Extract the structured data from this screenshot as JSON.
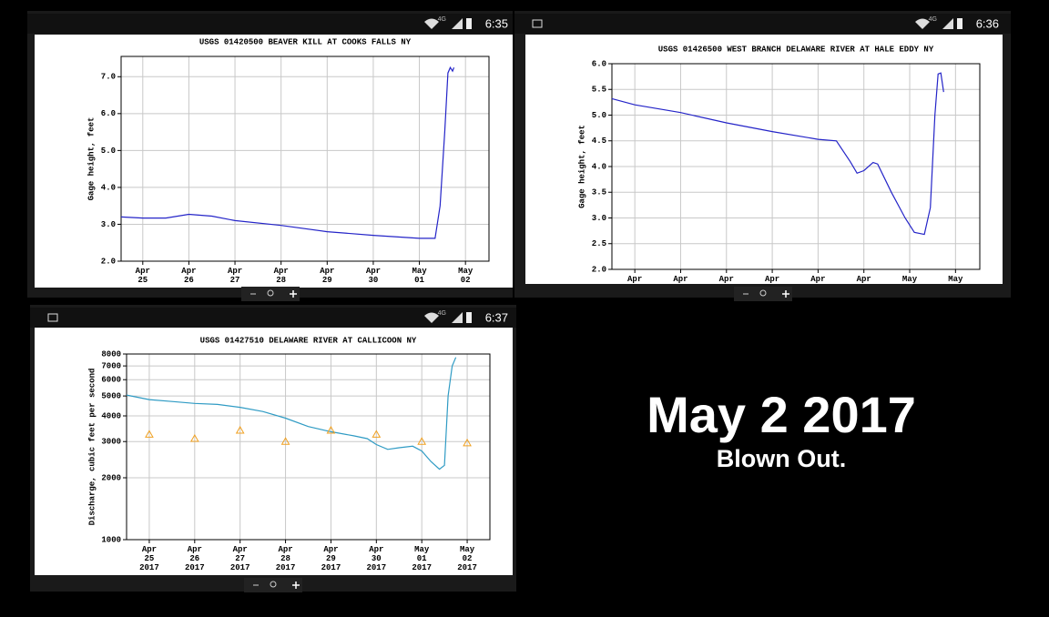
{
  "chart_data": [
    {
      "type": "line",
      "title": "USGS 01420500 BEAVER KILL AT COOKS FALLS NY",
      "y_label": "Gage height, feet",
      "xlim": [
        -0.47,
        7.51
      ],
      "xticks": [
        {
          "value": 0,
          "label": "Apr\n25"
        },
        {
          "value": 1,
          "label": "Apr\n26"
        },
        {
          "value": 2,
          "label": "Apr\n27"
        },
        {
          "value": 3,
          "label": "Apr\n28"
        },
        {
          "value": 4,
          "label": "Apr\n29"
        },
        {
          "value": 5,
          "label": "Apr\n30"
        },
        {
          "value": 6,
          "label": "May\n01"
        },
        {
          "value": 7,
          "label": "May\n02"
        }
      ],
      "ylim": [
        2,
        7.55
      ],
      "yticks": [
        {
          "value": 2,
          "label": "2.0"
        },
        {
          "value": 3,
          "label": "3.0"
        },
        {
          "value": 4,
          "label": "4.0"
        },
        {
          "value": 5,
          "label": "5.0"
        },
        {
          "value": 6,
          "label": "6.0"
        },
        {
          "value": 7,
          "label": "7.0"
        }
      ],
      "grid": true,
      "series": [
        {
          "color": "#2424c8",
          "x": [
            -0.47,
            0,
            0.5,
            1,
            1.5,
            2,
            3,
            4,
            5,
            6,
            6.34,
            6.45,
            6.55,
            6.62,
            6.67,
            6.72,
            6.75
          ],
          "values": [
            3.2,
            3.17,
            3.17,
            3.27,
            3.22,
            3.1,
            2.97,
            2.8,
            2.7,
            2.62,
            2.62,
            3.5,
            5.5,
            7.1,
            7.25,
            7.15,
            7.25
          ]
        }
      ]
    },
    {
      "type": "line",
      "title": "USGS 01426500 WEST BRANCH DELAWARE RIVER AT HALE EDDY NY",
      "y_label": "Gage height, feet",
      "xlim": [
        -0.5,
        7.53
      ],
      "xticks": [
        {
          "value": 0,
          "label": "Apr"
        },
        {
          "value": 1,
          "label": "Apr"
        },
        {
          "value": 2,
          "label": "Apr"
        },
        {
          "value": 3,
          "label": "Apr"
        },
        {
          "value": 4,
          "label": "Apr"
        },
        {
          "value": 5,
          "label": "Apr"
        },
        {
          "value": 6,
          "label": "May"
        },
        {
          "value": 7,
          "label": "May"
        }
      ],
      "ylim": [
        2,
        6
      ],
      "yticks": [
        {
          "value": 2,
          "label": "2.0"
        },
        {
          "value": 2.5,
          "label": "2.5"
        },
        {
          "value": 3,
          "label": "3.0"
        },
        {
          "value": 3.5,
          "label": "3.5"
        },
        {
          "value": 4,
          "label": "4.0"
        },
        {
          "value": 4.5,
          "label": "4.5"
        },
        {
          "value": 5,
          "label": "5.0"
        },
        {
          "value": 5.5,
          "label": "5.5"
        },
        {
          "value": 6,
          "label": "6.0"
        }
      ],
      "grid": true,
      "series": [
        {
          "color": "#2424c8",
          "x": [
            -0.5,
            0,
            1,
            2,
            3,
            4,
            4.4,
            4.7,
            4.85,
            5.0,
            5.2,
            5.3,
            5.6,
            5.9,
            6.1,
            6.32,
            6.45,
            6.55,
            6.62,
            6.68,
            6.74
          ],
          "values": [
            5.32,
            5.2,
            5.05,
            4.85,
            4.68,
            4.53,
            4.5,
            4.1,
            3.87,
            3.92,
            4.08,
            4.05,
            3.5,
            3.0,
            2.72,
            2.68,
            3.2,
            5.0,
            5.8,
            5.82,
            5.45
          ]
        }
      ]
    },
    {
      "type": "line",
      "title": "USGS 01427510 DELAWARE RIVER AT CALLICOON NY",
      "y_label": "Discharge, cubic feet per second",
      "log_scale": true,
      "xlim": [
        -0.5,
        7.5
      ],
      "xticks": [
        {
          "value": 0,
          "label": "Apr\n25\n2017"
        },
        {
          "value": 1,
          "label": "Apr\n26\n2017"
        },
        {
          "value": 2,
          "label": "Apr\n27\n2017"
        },
        {
          "value": 3,
          "label": "Apr\n28\n2017"
        },
        {
          "value": 4,
          "label": "Apr\n29\n2017"
        },
        {
          "value": 5,
          "label": "Apr\n30\n2017"
        },
        {
          "value": 6,
          "label": "May\n01\n2017"
        },
        {
          "value": 7,
          "label": "May\n02\n2017"
        }
      ],
      "ylim": [
        1000,
        8000
      ],
      "yticks": [
        1000,
        2000,
        3000,
        4000,
        5000,
        6000,
        7000,
        8000
      ],
      "grid": true,
      "series": [
        {
          "color": "#2f9bc4",
          "mode": "line",
          "x": [
            -0.5,
            0,
            0.5,
            1,
            1.5,
            2,
            2.5,
            3,
            3.5,
            4,
            4.5,
            4.8,
            5.0,
            5.25,
            5.5,
            5.8,
            6.0,
            6.2,
            6.39,
            6.5,
            6.58,
            6.67,
            6.75
          ],
          "values": [
            5050,
            4800,
            4700,
            4600,
            4550,
            4400,
            4200,
            3900,
            3550,
            3350,
            3200,
            3100,
            2900,
            2750,
            2800,
            2850,
            2700,
            2400,
            2200,
            2300,
            5000,
            7000,
            7700
          ]
        },
        {
          "color": "#f0a020",
          "mode": "markers",
          "x": [
            0,
            1,
            2,
            3,
            4,
            5,
            6,
            7
          ],
          "values": [
            3250,
            3100,
            3400,
            3000,
            3400,
            3250,
            3000,
            2950
          ]
        }
      ]
    }
  ],
  "status_bars": [
    {
      "time": "6:35",
      "network": "4G"
    },
    {
      "time": "6:36",
      "network": "4G"
    },
    {
      "time": "6:37",
      "network": "4G"
    }
  ],
  "caption": {
    "title": "May 2 2017",
    "subtitle": "Blown Out."
  }
}
